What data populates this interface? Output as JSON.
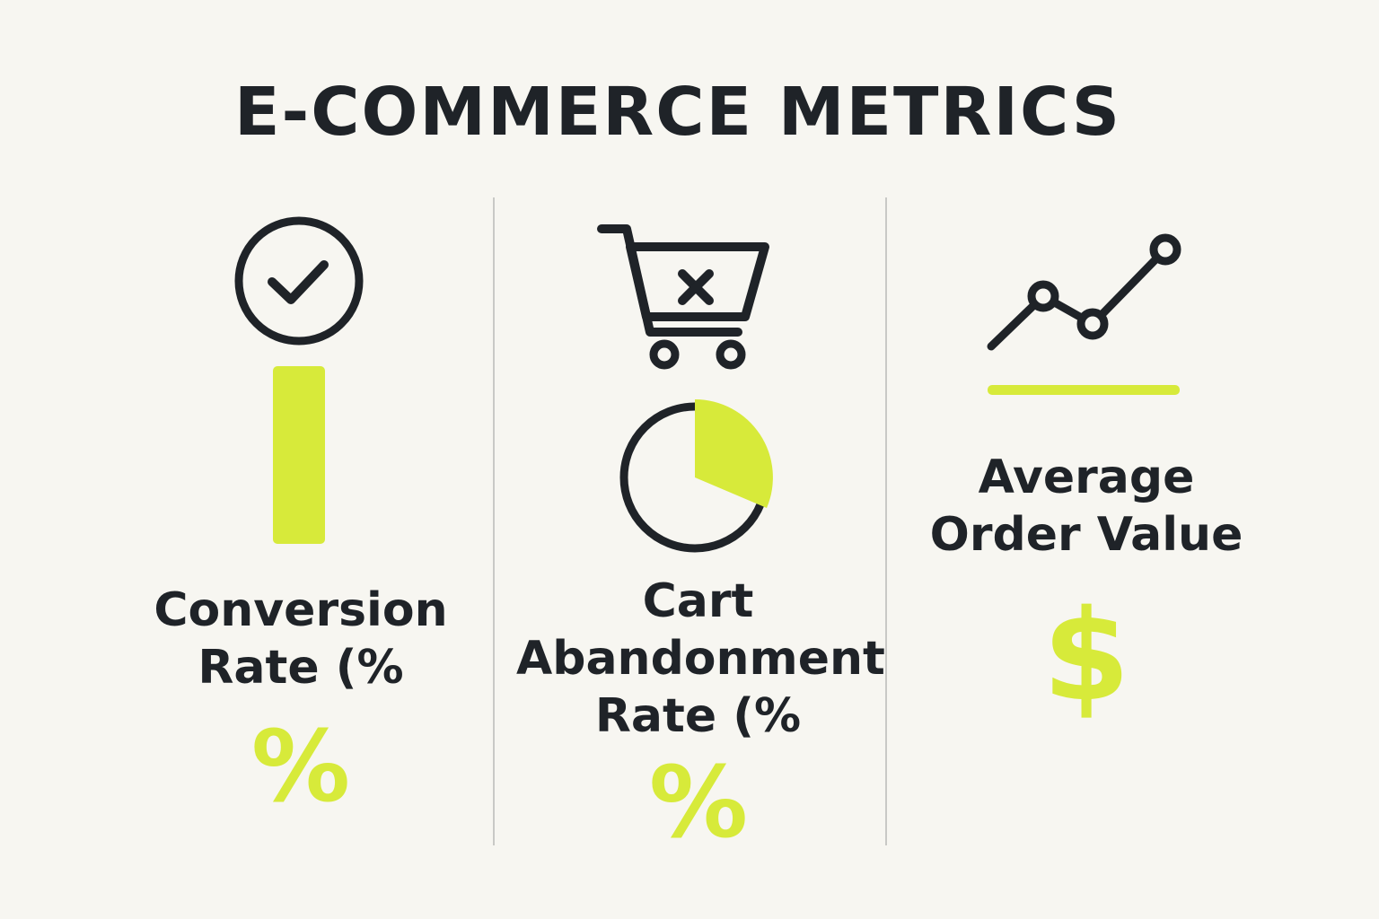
{
  "header": {
    "title": "E-COMMERCE METRICS"
  },
  "colors": {
    "accent": "#d7ea3a",
    "ink": "#1f2328",
    "background": "#f7f6f1",
    "divider": "#c9c9c6"
  },
  "metrics": [
    {
      "label_lines": [
        "Conversion",
        "Rate (%"
      ],
      "symbol": "%",
      "icon": "check-circle-icon",
      "visual": "bar"
    },
    {
      "label_lines": [
        "Cart",
        "Abandonment",
        "Rate (%"
      ],
      "symbol": "%",
      "icon": "cart-remove-icon",
      "visual": "pie"
    },
    {
      "label_lines": [
        "Average",
        "Order Value"
      ],
      "symbol": "$",
      "icon": "trend-line-icon",
      "visual": "underline"
    }
  ]
}
